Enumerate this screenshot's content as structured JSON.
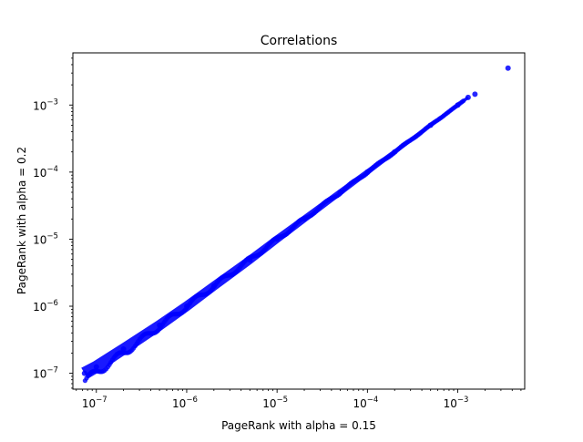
{
  "chart_data": {
    "type": "scatter",
    "title": "Correlations",
    "xlabel": "PageRank with alpha = 0.15",
    "ylabel": "PageRank with alpha = 0.2",
    "xscale": "log",
    "yscale": "log",
    "xlim": [
      5.5e-08,
      0.0055
    ],
    "ylim": [
      5.8e-08,
      0.006
    ],
    "xticks": [
      {
        "value": 1e-07,
        "base": "10",
        "exp": "−7"
      },
      {
        "value": 1e-06,
        "base": "10",
        "exp": "−6"
      },
      {
        "value": 1e-05,
        "base": "10",
        "exp": "−5"
      },
      {
        "value": 0.0001,
        "base": "10",
        "exp": "−4"
      },
      {
        "value": 0.001,
        "base": "10",
        "exp": "−3"
      }
    ],
    "yticks": [
      {
        "value": 1e-07,
        "base": "10",
        "exp": "−7"
      },
      {
        "value": 1e-06,
        "base": "10",
        "exp": "−6"
      },
      {
        "value": 1e-05,
        "base": "10",
        "exp": "−5"
      },
      {
        "value": 0.0001,
        "base": "10",
        "exp": "−4"
      },
      {
        "value": 0.001,
        "base": "10",
        "exp": "−3"
      }
    ],
    "grid": false,
    "legend": "none",
    "series": [
      {
        "color": "#0000ff",
        "points": [
          [
            7.4e-08,
            1e-07
          ],
          [
            1e-07,
            1.25e-07
          ],
          [
            2e-07,
            2.3e-07
          ],
          [
            5e-07,
            5.2e-07
          ],
          [
            1e-06,
            1e-06
          ],
          [
            2e-06,
            2e-06
          ],
          [
            5e-06,
            4.9e-06
          ],
          [
            1e-05,
            1e-05
          ],
          [
            2e-05,
            2e-05
          ],
          [
            5e-05,
            5e-05
          ],
          [
            0.0001,
            0.0001
          ],
          [
            0.0002,
            0.0002
          ],
          [
            0.0005,
            0.0005
          ],
          [
            0.001,
            0.001
          ],
          [
            0.0013,
            0.0013
          ],
          [
            0.00155,
            0.00145
          ],
          [
            0.0036,
            0.00355
          ]
        ]
      }
    ]
  }
}
